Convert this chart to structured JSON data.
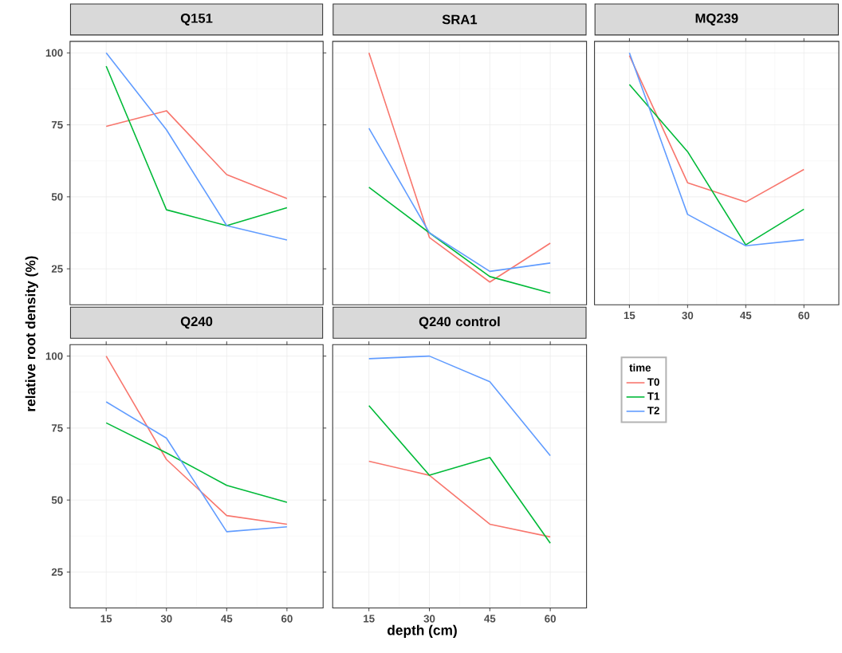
{
  "chart_data": [
    {
      "type": "line",
      "title": "Q151",
      "ylabel": "relative root density (%)",
      "x": [
        15,
        30,
        45,
        60
      ],
      "xlim": [
        6,
        69
      ],
      "xticks": [
        15,
        30,
        45,
        60
      ],
      "ylim": [
        12.5,
        104
      ],
      "yticks": [
        25,
        50,
        75,
        100
      ],
      "grid": true,
      "tick_labels": "y",
      "series": [
        {
          "color": "#f8766d",
          "values": [
            74.5,
            79.9,
            57.7,
            49.4
          ]
        },
        {
          "color": "#00ba38",
          "values": [
            95.4,
            45.5,
            40,
            46.2
          ]
        },
        {
          "color": "#619cff",
          "values": [
            100,
            73.3,
            40,
            35
          ]
        }
      ]
    },
    {
      "type": "line",
      "title": "SRA1",
      "x": [
        15,
        30,
        45,
        60
      ],
      "xlim": [
        6,
        69
      ],
      "xticks": [
        15,
        30,
        45,
        60
      ],
      "ylim": [
        12.5,
        104
      ],
      "yticks": [
        25,
        50,
        75,
        100
      ],
      "grid": true,
      "tick_labels": false,
      "series": [
        {
          "color": "#f8766d",
          "values": [
            100,
            35.9,
            20.4,
            33.9
          ]
        },
        {
          "color": "#00ba38",
          "values": [
            53.3,
            37.5,
            22.3,
            16.6
          ]
        },
        {
          "color": "#619cff",
          "values": [
            73.8,
            37.5,
            24.1,
            27
          ]
        }
      ]
    },
    {
      "type": "line",
      "title": "MQ239",
      "x": [
        15,
        30,
        45,
        60
      ],
      "xlim": [
        6,
        69
      ],
      "xticks": [
        15,
        30,
        45,
        60
      ],
      "ylim": [
        12.5,
        104
      ],
      "yticks": [
        25,
        50,
        75,
        100
      ],
      "grid": true,
      "tick_labels": "x",
      "series": [
        {
          "color": "#f8766d",
          "values": [
            99.1,
            54.9,
            48.2,
            59.5
          ]
        },
        {
          "color": "#00ba38",
          "values": [
            89,
            65.7,
            33.3,
            45.7
          ]
        },
        {
          "color": "#619cff",
          "values": [
            100,
            43.9,
            33,
            35.1
          ]
        }
      ]
    },
    {
      "type": "line",
      "title": "Q240",
      "x": [
        15,
        30,
        45,
        60
      ],
      "xlim": [
        6,
        69
      ],
      "xticks": [
        15,
        30,
        45,
        60
      ],
      "ylim": [
        12.5,
        104
      ],
      "yticks": [
        25,
        50,
        75,
        100
      ],
      "grid": true,
      "series": [
        {
          "color": "#f8766d",
          "values": [
            100,
            64.1,
            44.6,
            41.6
          ]
        },
        {
          "color": "#00ba38",
          "values": [
            76.8,
            66.4,
            55.1,
            49.2
          ]
        },
        {
          "color": "#619cff",
          "values": [
            84.1,
            71.5,
            39,
            40.7
          ]
        }
      ]
    },
    {
      "type": "line",
      "title": "Q240 control",
      "xlabel": "depth (cm)",
      "legend_title": "time",
      "legend": "right",
      "x": [
        15,
        30,
        45,
        60
      ],
      "xlim": [
        6,
        69
      ],
      "xticks": [
        15,
        30,
        45,
        60
      ],
      "ylim": [
        12.5,
        104
      ],
      "yticks": [
        25,
        50,
        75,
        100
      ],
      "grid": true,
      "tick_labels": "x",
      "series": [
        {
          "name": "T0",
          "color": "#f8766d",
          "values": [
            63.5,
            58.6,
            41.6,
            37.2
          ]
        },
        {
          "name": "T1",
          "color": "#00ba38",
          "values": [
            82.8,
            58.6,
            64.8,
            35
          ]
        },
        {
          "name": "T2",
          "color": "#619cff",
          "values": [
            99.1,
            100,
            91.1,
            65.4
          ]
        }
      ]
    }
  ]
}
